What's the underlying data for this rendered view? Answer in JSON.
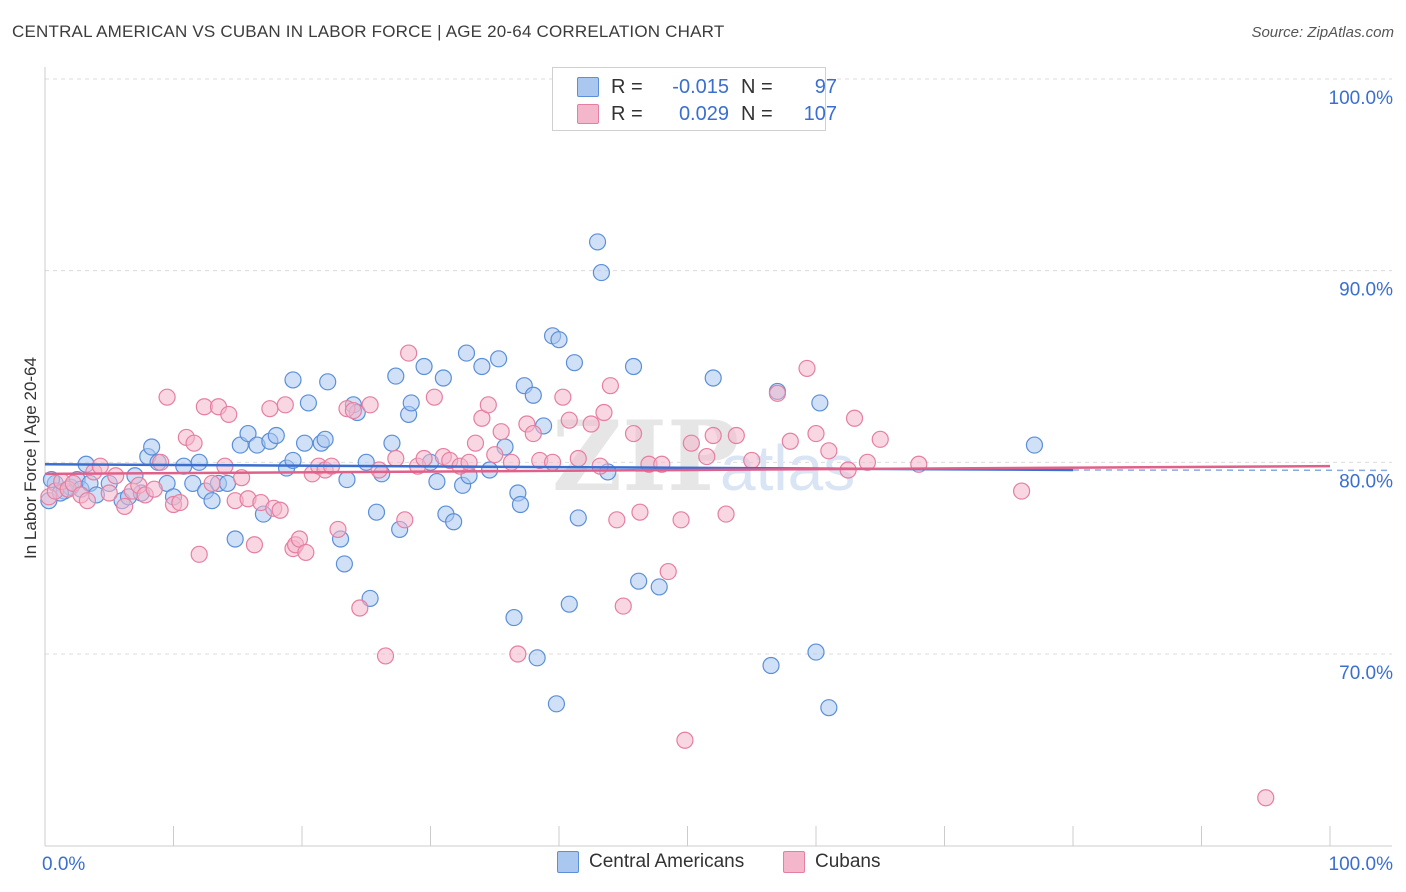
{
  "title": "CENTRAL AMERICAN VS CUBAN IN LABOR FORCE | AGE 20-64 CORRELATION CHART",
  "source": "Source: ZipAtlas.com",
  "watermark": "ZIPatlas",
  "legend": {
    "rows": [
      {
        "r_label": "R =",
        "r_value": "-0.015",
        "n_label": "N =",
        "n_value": "97"
      },
      {
        "r_label": "R =",
        "r_value": "0.029",
        "n_label": "N =",
        "n_value": "107"
      }
    ]
  },
  "bottom_legend": {
    "series1": "Central Americans",
    "series2": "Cubans"
  },
  "colors": {
    "blue_fill": "#a9c7ef",
    "blue_stroke": "#5b8fd8",
    "blue_line": "#3a6fd0",
    "pink_fill": "#f4b6ca",
    "pink_stroke": "#e57fa1",
    "pink_line": "#e0608a",
    "axis_text": "#3a6fd0",
    "grid": "#dcdcdc"
  },
  "chart_data": {
    "type": "scatter",
    "title": "CENTRAL AMERICAN VS CUBAN IN LABOR FORCE | AGE 20-64 CORRELATION CHART",
    "ylabel": "In Labor Force | Age 20-64",
    "xlabel": "",
    "x_ticks": [
      "0.0%",
      "100.0%"
    ],
    "y_ticks": [
      "70.0%",
      "80.0%",
      "90.0%",
      "100.0%"
    ],
    "xlim": [
      0,
      100
    ],
    "ylim": [
      60,
      100
    ],
    "grid": "horizontal dashed",
    "legend_position": "top-center",
    "series": [
      {
        "name": "Central Americans",
        "R": -0.015,
        "N": 97,
        "trend": [
          [
            0,
            79.9
          ],
          [
            80,
            79.6
          ]
        ],
        "points": [
          [
            0.3,
            78.0
          ],
          [
            0.8,
            78.9
          ],
          [
            1.5,
            78.5
          ],
          [
            2.0,
            78.7
          ],
          [
            2.5,
            79.1
          ],
          [
            2.8,
            78.6
          ],
          [
            3.2,
            79.9
          ],
          [
            3.5,
            78.9
          ],
          [
            4.0,
            78.3
          ],
          [
            5.0,
            78.9
          ],
          [
            6.0,
            78.0
          ],
          [
            6.5,
            78.2
          ],
          [
            7.0,
            79.3
          ],
          [
            7.5,
            78.4
          ],
          [
            8.0,
            80.3
          ],
          [
            8.3,
            80.8
          ],
          [
            8.8,
            80.0
          ],
          [
            9.5,
            78.9
          ],
          [
            10,
            78.2
          ],
          [
            10.8,
            79.8
          ],
          [
            11.5,
            78.9
          ],
          [
            12.0,
            80.0
          ],
          [
            12.5,
            78.5
          ],
          [
            13.0,
            78.0
          ],
          [
            13.5,
            78.9
          ],
          [
            14.2,
            78.9
          ],
          [
            14.8,
            76.0
          ],
          [
            15.2,
            80.9
          ],
          [
            15.8,
            81.5
          ],
          [
            16.5,
            80.9
          ],
          [
            17.0,
            77.3
          ],
          [
            17.5,
            81.1
          ],
          [
            18,
            81.4
          ],
          [
            18.8,
            79.7
          ],
          [
            19.3,
            80.1
          ],
          [
            19.3,
            84.3
          ],
          [
            20.2,
            81.0
          ],
          [
            20.5,
            83.1
          ],
          [
            21.5,
            81.0
          ],
          [
            21.8,
            81.2
          ],
          [
            22.0,
            84.2
          ],
          [
            23.0,
            76.0
          ],
          [
            23.3,
            74.7
          ],
          [
            23.5,
            79.1
          ],
          [
            24.0,
            83.0
          ],
          [
            24.3,
            82.6
          ],
          [
            25.0,
            80.0
          ],
          [
            25.3,
            72.9
          ],
          [
            25.8,
            77.4
          ],
          [
            26.2,
            79.4
          ],
          [
            27.0,
            81.0
          ],
          [
            27.3,
            84.5
          ],
          [
            27.6,
            76.5
          ],
          [
            28.3,
            82.5
          ],
          [
            28.5,
            83.1
          ],
          [
            29.5,
            85.0
          ],
          [
            30.0,
            80.0
          ],
          [
            30.5,
            79.0
          ],
          [
            31,
            84.4
          ],
          [
            31.2,
            77.3
          ],
          [
            31.8,
            76.9
          ],
          [
            32.5,
            78.8
          ],
          [
            32.8,
            85.7
          ],
          [
            33,
            79.3
          ],
          [
            34,
            85.0
          ],
          [
            34.6,
            79.6
          ],
          [
            35.3,
            85.4
          ],
          [
            35.8,
            80.8
          ],
          [
            36.5,
            71.9
          ],
          [
            36.8,
            78.4
          ],
          [
            37.0,
            77.8
          ],
          [
            37.3,
            84.0
          ],
          [
            38.0,
            83.5
          ],
          [
            38.3,
            69.8
          ],
          [
            38.8,
            81.9
          ],
          [
            39.5,
            86.6
          ],
          [
            39.8,
            67.4
          ],
          [
            40.0,
            86.4
          ],
          [
            40.8,
            72.6
          ],
          [
            41.2,
            85.2
          ],
          [
            41.5,
            77.1
          ],
          [
            43.0,
            91.5
          ],
          [
            43.3,
            89.9
          ],
          [
            43.8,
            79.5
          ],
          [
            45.8,
            85.0
          ],
          [
            46.2,
            73.8
          ],
          [
            47.8,
            73.5
          ],
          [
            52.0,
            84.4
          ],
          [
            56.5,
            69.4
          ],
          [
            57.0,
            83.7
          ],
          [
            60.0,
            70.1
          ],
          [
            60.3,
            83.1
          ],
          [
            61.0,
            67.2
          ],
          [
            77.0,
            80.9
          ],
          [
            0.5,
            79.1
          ],
          [
            1.2,
            78.4
          ]
        ]
      },
      {
        "name": "Cubans",
        "R": 0.029,
        "N": 107,
        "trend": [
          [
            0,
            79.4
          ],
          [
            100,
            79.8
          ]
        ],
        "points": [
          [
            0.3,
            78.2
          ],
          [
            0.8,
            78.5
          ],
          [
            1.3,
            79.0
          ],
          [
            1.8,
            78.6
          ],
          [
            2.2,
            78.9
          ],
          [
            2.8,
            78.3
          ],
          [
            3.3,
            78.0
          ],
          [
            3.8,
            79.5
          ],
          [
            4.3,
            79.8
          ],
          [
            5.0,
            78.4
          ],
          [
            5.5,
            79.3
          ],
          [
            6.2,
            77.7
          ],
          [
            6.8,
            78.5
          ],
          [
            7.3,
            78.8
          ],
          [
            7.8,
            78.3
          ],
          [
            8.5,
            78.6
          ],
          [
            9.0,
            80.0
          ],
          [
            9.5,
            83.4
          ],
          [
            10.0,
            77.8
          ],
          [
            10.5,
            77.9
          ],
          [
            11.0,
            81.3
          ],
          [
            11.6,
            81.0
          ],
          [
            12.0,
            75.2
          ],
          [
            12.4,
            82.9
          ],
          [
            13.0,
            78.9
          ],
          [
            13.5,
            82.9
          ],
          [
            14.0,
            79.8
          ],
          [
            14.3,
            82.5
          ],
          [
            14.8,
            78.0
          ],
          [
            15.3,
            79.2
          ],
          [
            15.8,
            78.1
          ],
          [
            16.3,
            75.7
          ],
          [
            16.8,
            77.9
          ],
          [
            17.5,
            82.8
          ],
          [
            17.8,
            77.6
          ],
          [
            18.3,
            77.5
          ],
          [
            18.7,
            83.0
          ],
          [
            19.3,
            75.5
          ],
          [
            19.5,
            75.7
          ],
          [
            19.8,
            76.0
          ],
          [
            20.3,
            75.3
          ],
          [
            20.8,
            79.4
          ],
          [
            21.3,
            79.8
          ],
          [
            21.8,
            79.6
          ],
          [
            22.3,
            79.8
          ],
          [
            22.8,
            76.5
          ],
          [
            23.5,
            82.8
          ],
          [
            24.0,
            82.7
          ],
          [
            24.5,
            72.4
          ],
          [
            25.3,
            83.0
          ],
          [
            26.0,
            79.6
          ],
          [
            26.5,
            69.9
          ],
          [
            27.3,
            80.2
          ],
          [
            28.0,
            77.0
          ],
          [
            28.3,
            85.7
          ],
          [
            29.0,
            79.8
          ],
          [
            29.5,
            80.2
          ],
          [
            30.3,
            83.4
          ],
          [
            31.0,
            80.3
          ],
          [
            31.5,
            80.1
          ],
          [
            32.3,
            79.8
          ],
          [
            33.0,
            80.0
          ],
          [
            33.5,
            81.0
          ],
          [
            34.0,
            82.3
          ],
          [
            34.5,
            83.0
          ],
          [
            35.0,
            80.4
          ],
          [
            35.5,
            81.6
          ],
          [
            36.3,
            80.0
          ],
          [
            36.8,
            70.0
          ],
          [
            37.5,
            82.0
          ],
          [
            38.0,
            81.5
          ],
          [
            38.5,
            80.1
          ],
          [
            39.5,
            80.0
          ],
          [
            40.3,
            83.4
          ],
          [
            40.8,
            82.2
          ],
          [
            41.5,
            80.2
          ],
          [
            42.5,
            82.0
          ],
          [
            43.2,
            79.8
          ],
          [
            43.5,
            82.6
          ],
          [
            44.0,
            84.0
          ],
          [
            44.5,
            77.0
          ],
          [
            45.0,
            72.5
          ],
          [
            45.8,
            81.5
          ],
          [
            46.3,
            77.4
          ],
          [
            47.0,
            79.9
          ],
          [
            48.0,
            79.9
          ],
          [
            48.5,
            74.3
          ],
          [
            49.5,
            77.0
          ],
          [
            49.8,
            65.5
          ],
          [
            50.3,
            81.0
          ],
          [
            51.5,
            80.3
          ],
          [
            52.0,
            81.4
          ],
          [
            53.0,
            77.3
          ],
          [
            53.8,
            81.4
          ],
          [
            55.0,
            80.1
          ],
          [
            57.0,
            83.6
          ],
          [
            58.0,
            81.1
          ],
          [
            59.3,
            84.9
          ],
          [
            60.0,
            81.5
          ],
          [
            61.0,
            80.6
          ],
          [
            62.5,
            79.6
          ],
          [
            63.0,
            82.3
          ],
          [
            64.0,
            80.0
          ],
          [
            65.0,
            81.2
          ],
          [
            68.0,
            79.9
          ],
          [
            76.0,
            78.5
          ],
          [
            95.0,
            62.5
          ]
        ]
      }
    ]
  }
}
